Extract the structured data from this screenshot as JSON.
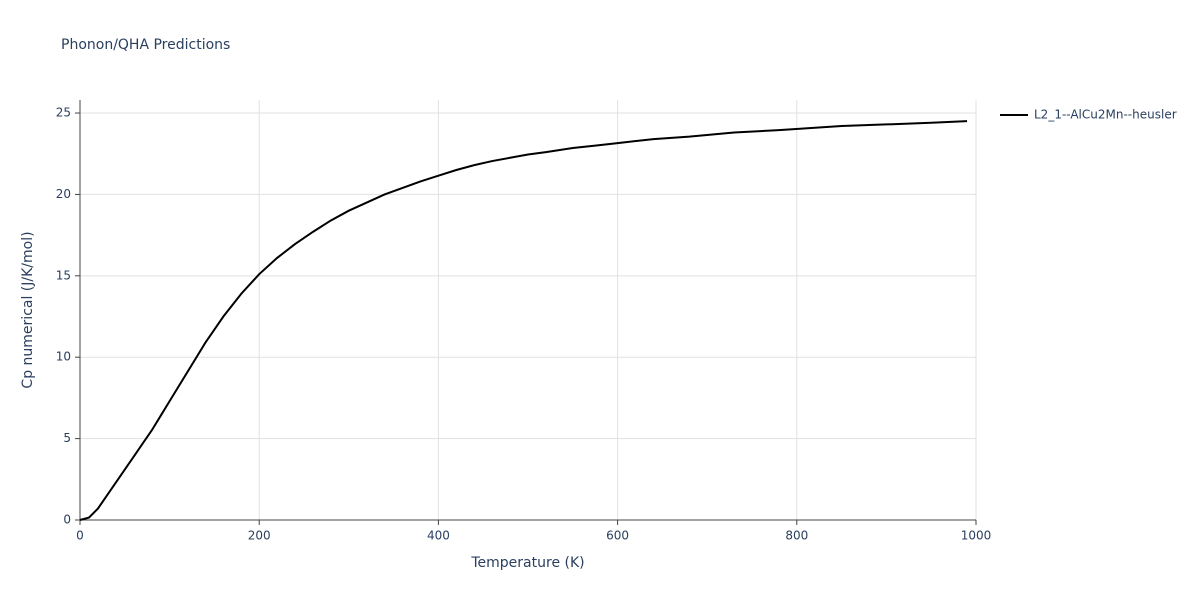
{
  "chart_data": {
    "type": "line",
    "title": "Phonon/QHA Predictions",
    "x_label": "Temperature (K)",
    "y_label": "Cp numerical (J/K/mol)",
    "x": [
      0,
      10,
      20,
      30,
      40,
      50,
      60,
      70,
      80,
      90,
      100,
      110,
      120,
      130,
      140,
      150,
      160,
      170,
      180,
      190,
      200,
      220,
      240,
      260,
      280,
      300,
      320,
      340,
      360,
      380,
      400,
      420,
      440,
      460,
      480,
      500,
      520,
      550,
      575,
      600,
      640,
      680,
      730,
      780,
      850,
      900,
      950,
      990
    ],
    "series": [
      {
        "name": "L2_1--AlCu2Mn--heusler",
        "color": "#000000",
        "values": [
          0,
          0.15,
          0.7,
          1.5,
          2.3,
          3.1,
          3.9,
          4.7,
          5.5,
          6.4,
          7.3,
          8.2,
          9.1,
          10.0,
          10.9,
          11.7,
          12.5,
          13.2,
          13.9,
          14.5,
          15.1,
          16.1,
          16.95,
          17.7,
          18.4,
          19.0,
          19.5,
          20.0,
          20.4,
          20.8,
          21.15,
          21.5,
          21.8,
          22.05,
          22.25,
          22.45,
          22.6,
          22.85,
          23.0,
          23.15,
          23.4,
          23.55,
          23.8,
          23.95,
          24.2,
          24.3,
          24.4,
          24.5
        ]
      }
    ],
    "xlim": [
      0,
      1000
    ],
    "xticks": [
      0,
      200,
      400,
      600,
      800,
      1000
    ],
    "ylim": [
      0,
      25.8
    ],
    "yticks": [
      0,
      5,
      10,
      15,
      20,
      25
    ],
    "grid": true,
    "legend": "right"
  }
}
